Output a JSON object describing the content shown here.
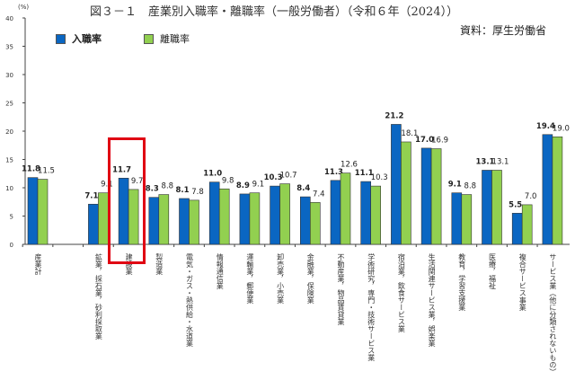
{
  "chart_data": {
    "type": "bar",
    "title": "図３－１　産業別入職率・離職率（一般労働者）（令和６年（2024））",
    "source": "資料：厚生労働省",
    "ylabel": "(%)",
    "ylim": [
      0,
      40
    ],
    "yticks": [
      0,
      5,
      10,
      15,
      20,
      25,
      30,
      35,
      40
    ],
    "legend_placement": "top-left",
    "highlighted_category": "建設業",
    "categories": [
      "産業計",
      "",
      "鉱業，採石業，砂利採取業",
      "建設業",
      "製造業",
      "電気・ガス・熱供給・水道業",
      "情報通信業",
      "運輸業，郵便業",
      "卸売業，小売業",
      "金融業，保険業",
      "不動産業，物品賃貸業",
      "学術研究，専門・技術サービス業",
      "宿泊業，飲食サービス業",
      "生活関連サービス業，娯楽業",
      "教育，学習支援業",
      "医療，福祉",
      "複合サービス事業",
      "サービス業（他に分類されないもの）"
    ],
    "series": [
      {
        "name": "入職率",
        "color": "#0a66c2",
        "values": [
          11.8,
          null,
          7.1,
          11.7,
          8.3,
          8.1,
          11.0,
          8.9,
          10.3,
          8.4,
          11.3,
          11.1,
          21.2,
          17.0,
          9.1,
          13.1,
          5.5,
          19.4
        ]
      },
      {
        "name": "離職率",
        "color": "#92d050",
        "values": [
          11.5,
          null,
          9.1,
          9.7,
          8.8,
          7.8,
          9.8,
          9.1,
          10.7,
          7.4,
          12.6,
          10.3,
          18.1,
          16.9,
          8.8,
          13.1,
          7.0,
          19.0
        ]
      }
    ]
  }
}
